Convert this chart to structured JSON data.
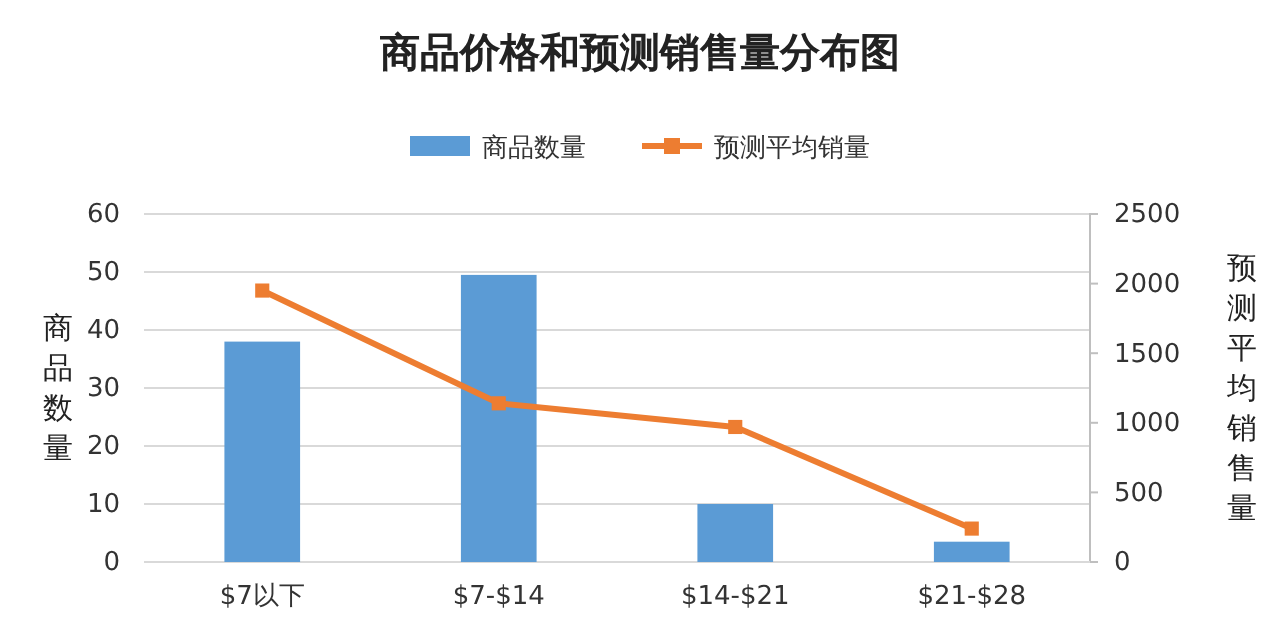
{
  "chart_data": {
    "type": "bar",
    "title": "商品价格和预测销售量分布图",
    "ylabel": "商品数量",
    "y2label": "预测平均销售量",
    "categories": [
      "$7以下",
      "$7-$14",
      "$14-$21",
      "$21-$28"
    ],
    "series": [
      {
        "name": "商品数量",
        "color": "#5b9bd5",
        "values": [
          38,
          49.5,
          10,
          3.5
        ]
      },
      {
        "name": "预测平均销量",
        "type": "line",
        "axis": "y2",
        "color": "#ed7d31",
        "marker": "square",
        "values": [
          1950,
          1140,
          970,
          240
        ]
      }
    ],
    "ylim": [
      0,
      60
    ],
    "yticks": [
      0,
      10,
      20,
      30,
      40,
      50,
      60
    ],
    "y2lim": [
      0,
      2500
    ],
    "y2ticks": [
      0,
      500,
      1000,
      1500,
      2000,
      2500
    ],
    "grid": "y",
    "legend": "top"
  }
}
